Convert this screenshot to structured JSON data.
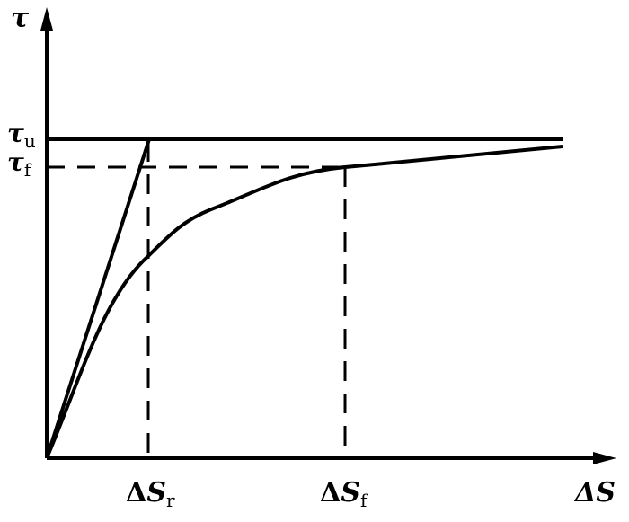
{
  "diagram": {
    "y_axis_label": "τ",
    "x_axis_label": "ΔS",
    "y_ticks": [
      {
        "symbol": "τ",
        "subscript": "u"
      },
      {
        "symbol": "τ",
        "subscript": "f"
      }
    ],
    "x_ticks": [
      {
        "prefix": "Δ",
        "symbol": "S",
        "subscript": "r"
      },
      {
        "prefix": "Δ",
        "symbol": "S",
        "subscript": "f"
      }
    ],
    "line_color": "#000000"
  }
}
